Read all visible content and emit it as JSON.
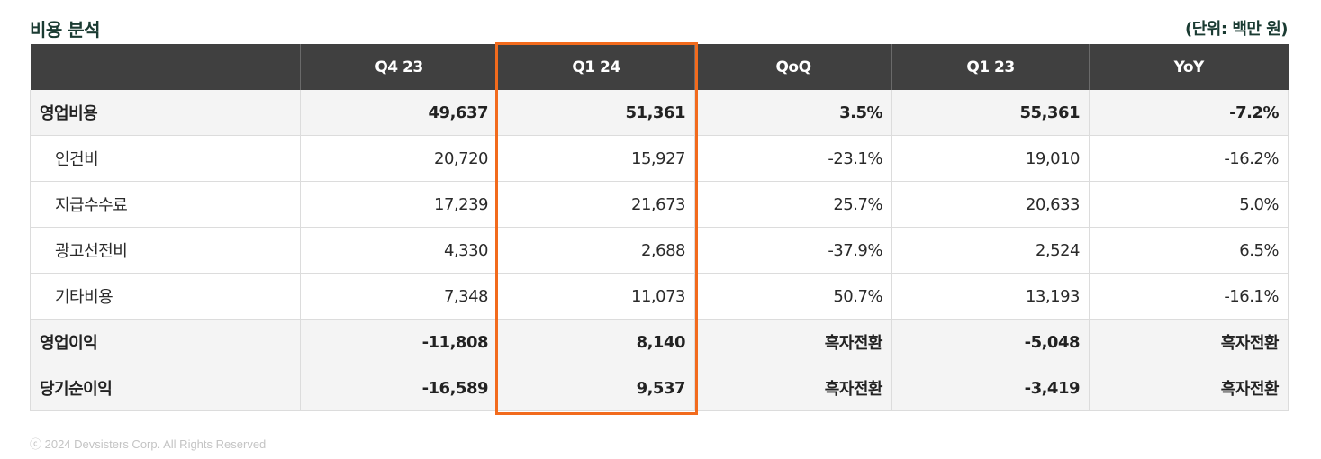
{
  "title": "비용 분석",
  "unit": "(단위: 백만 원)",
  "table": {
    "headers": [
      "",
      "Q4 23",
      "Q1 24",
      "QoQ",
      "Q1 23",
      "YoY"
    ],
    "rows": [
      {
        "label": "영업비용",
        "cells": [
          "49,637",
          "51,361",
          "3.5%",
          "55,361",
          "-7.2%"
        ]
      },
      {
        "label": "인건비",
        "cells": [
          "20,720",
          "15,927",
          "-23.1%",
          "19,010",
          "-16.2%"
        ]
      },
      {
        "label": "지급수수료",
        "cells": [
          "17,239",
          "21,673",
          "25.7%",
          "20,633",
          "5.0%"
        ]
      },
      {
        "label": "광고선전비",
        "cells": [
          "4,330",
          "2,688",
          "-37.9%",
          "2,524",
          "6.5%"
        ]
      },
      {
        "label": "기타비용",
        "cells": [
          "7,348",
          "11,073",
          "50.7%",
          "13,193",
          "-16.1%"
        ]
      },
      {
        "label": "영업이익",
        "cells": [
          "-11,808",
          "8,140",
          "흑자전환",
          "-5,048",
          "흑자전환"
        ]
      },
      {
        "label": "당기순이익",
        "cells": [
          "-16,589",
          "9,537",
          "흑자전환",
          "-3,419",
          "흑자전환"
        ]
      }
    ]
  },
  "highlight_color": "#f26b1d",
  "footer": "ⓒ 2024 Devsisters Corp. All Rights Reserved"
}
